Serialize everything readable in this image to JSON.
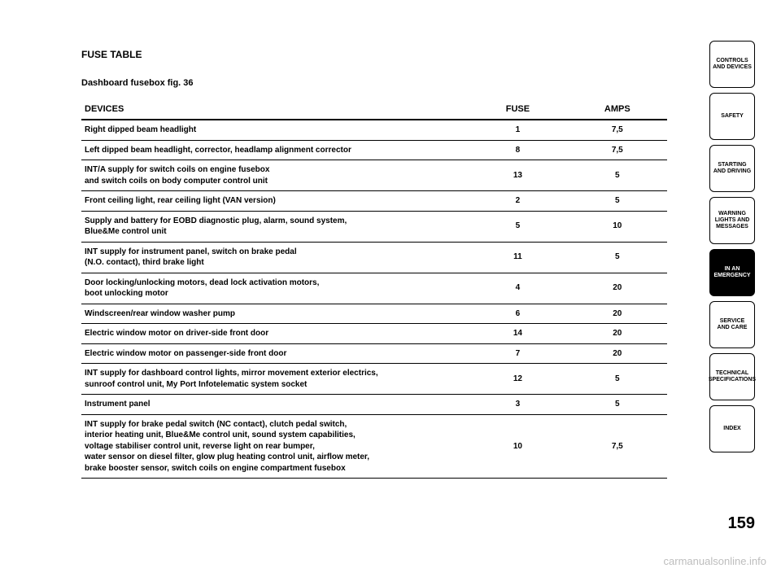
{
  "page": {
    "number": "159",
    "watermark": "carmanualsonline.info"
  },
  "heading": "FUSE TABLE",
  "subheading": "Dashboard fusebox fig. 36",
  "table": {
    "header": {
      "devices": "DEVICES",
      "fuse": "FUSE",
      "amps": "AMPS"
    },
    "rows": [
      {
        "device": "Right dipped beam headlight",
        "fuse": "1",
        "amps": "7,5"
      },
      {
        "device": "Left dipped beam headlight, corrector, headlamp alignment corrector",
        "fuse": "8",
        "amps": "7,5"
      },
      {
        "device": "INT/A supply for switch coils on engine fusebox\nand switch coils on body computer control unit",
        "fuse": "13",
        "amps": "5"
      },
      {
        "device": "Front ceiling light, rear ceiling light (VAN version)",
        "fuse": "2",
        "amps": "5"
      },
      {
        "device": "Supply and battery for EOBD diagnostic plug, alarm, sound system,\nBlue&Me control unit",
        "fuse": "5",
        "amps": "10"
      },
      {
        "device": "INT supply for instrument panel, switch on brake pedal\n(N.O. contact), third brake light",
        "fuse": "11",
        "amps": "5"
      },
      {
        "device": "Door locking/unlocking motors, dead lock activation motors,\nboot unlocking motor",
        "fuse": "4",
        "amps": "20"
      },
      {
        "device": "Windscreen/rear window washer pump",
        "fuse": "6",
        "amps": "20"
      },
      {
        "device": "Electric window motor on driver-side front door",
        "fuse": "14",
        "amps": "20"
      },
      {
        "device": "Electric window motor on passenger-side front door",
        "fuse": "7",
        "amps": "20"
      },
      {
        "device": "INT supply for dashboard control lights, mirror movement exterior electrics,\nsunroof control unit, My Port Infotelematic system socket",
        "fuse": "12",
        "amps": "5"
      },
      {
        "device": "Instrument panel",
        "fuse": "3",
        "amps": "5"
      },
      {
        "device": "INT supply for brake pedal switch (NC contact), clutch pedal switch,\ninterior heating unit, Blue&Me control unit, sound system capabilities,\nvoltage stabiliser control unit, reverse light on rear bumper,\nwater sensor on diesel filter, glow plug heating control unit, airflow meter,\nbrake booster sensor, switch coils on engine compartment fusebox",
        "fuse": "10",
        "amps": "7,5"
      }
    ]
  },
  "tabs": [
    {
      "label": "CONTROLS\nAND DEVICES",
      "active": false
    },
    {
      "label": "SAFETY",
      "active": false
    },
    {
      "label": "STARTING\nAND DRIVING",
      "active": false
    },
    {
      "label": "WARNING\nLIGHTS AND\nMESSAGES",
      "active": false
    },
    {
      "label": "IN AN\nEMERGENCY",
      "active": true
    },
    {
      "label": "SERVICE\nAND CARE",
      "active": false
    },
    {
      "label": "TECHNICAL\nSPECIFICATIONS",
      "active": false
    },
    {
      "label": "INDEX",
      "active": false
    }
  ],
  "style": {
    "bg": "#ffffff",
    "text": "#000000",
    "border": "#000000",
    "watermark_color": "#bdbdbd",
    "heading_fontsize": 12,
    "subheading_fontsize": 11,
    "header_fontsize": 11,
    "cell_fontsize": 10,
    "tab_fontsize": 7,
    "pagenum_fontsize": 20
  }
}
